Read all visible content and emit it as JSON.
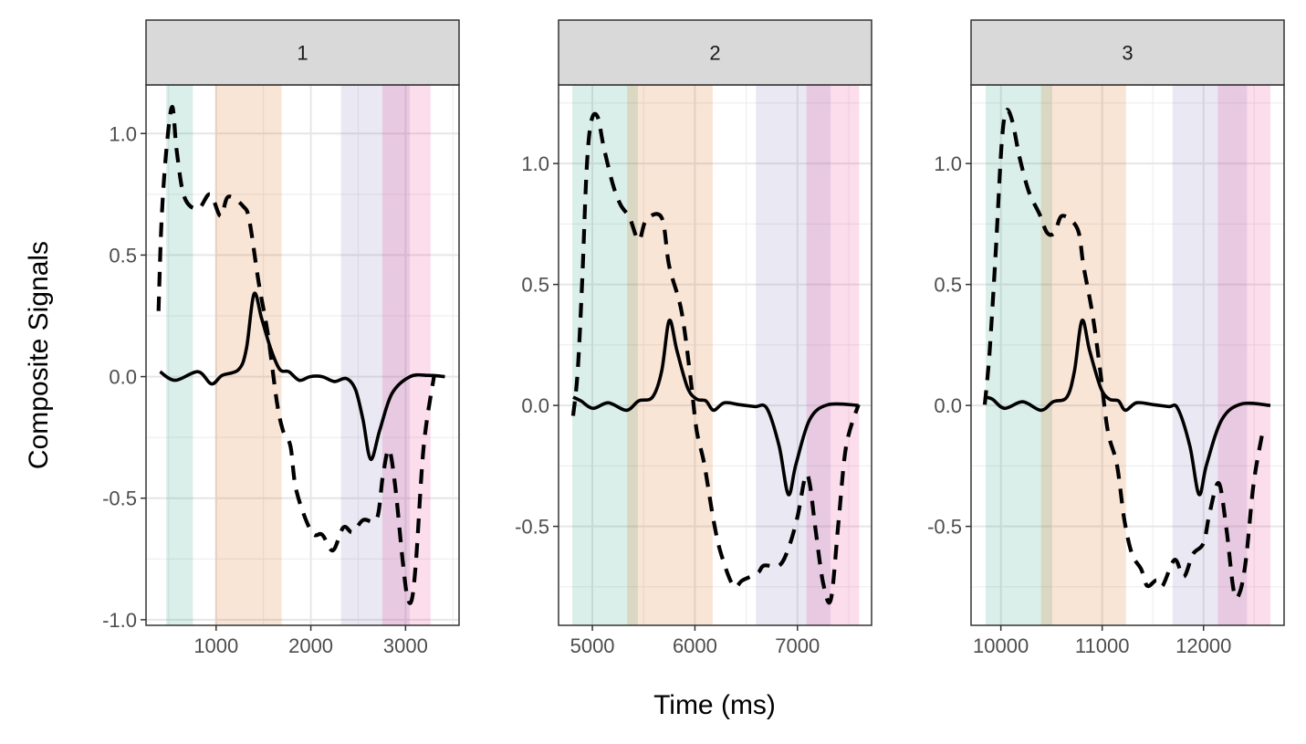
{
  "chart_data": {
    "type": "line",
    "xlabel": "Time (ms)",
    "ylabel": "Composite Signals",
    "grid": true,
    "legend": "none",
    "colors": {
      "green": "#1b9e77",
      "orange": "#d95f02",
      "purple": "#7570b3",
      "pink": "#e7298a",
      "line": "#000000",
      "strip": "#d9d9d9"
    },
    "panels": [
      {
        "strip": "1",
        "xlim": [
          260,
          3565
        ],
        "ylim": [
          -1.023,
          1.2
        ],
        "xticks": [
          1000,
          2000,
          3000
        ],
        "xtick_labels": [
          "1000",
          "2000",
          "3000"
        ],
        "yticks": [
          1.0,
          0.5,
          0.0,
          -0.5,
          -1.0
        ],
        "ytick_labels": [
          "1.0",
          "0.5",
          "0.0",
          "-0.5",
          "-1.0"
        ],
        "bands": [
          {
            "xmin": 473,
            "xmax": 755,
            "color": "green"
          },
          {
            "xmin": 991,
            "xmax": 1691,
            "color": "orange"
          },
          {
            "xmin": 2318,
            "xmax": 3045,
            "color": "purple"
          },
          {
            "xmin": 2755,
            "xmax": 3264,
            "color": "pink"
          }
        ],
        "series": [
          {
            "style": "solid",
            "x": [
              408,
              568,
              808,
              952,
              1064,
              1240,
              1320,
              1400,
              1480,
              1576,
              1672,
              1768,
              1880,
              1992,
              2120,
              2248,
              2376,
              2472,
              2552,
              2632,
              2728,
              2856,
              3048,
              3240,
              3416
            ],
            "y": [
              0.02,
              -0.015,
              0.02,
              -0.03,
              0.005,
              0.03,
              0.115,
              0.34,
              0.24,
              0.115,
              0.03,
              0.02,
              -0.015,
              0,
              0,
              -0.02,
              -0.008,
              -0.054,
              -0.18,
              -0.34,
              -0.22,
              -0.07,
              0,
              0.005,
              0
            ]
          },
          {
            "style": "dashed",
            "x": [
              392,
              424,
              472,
              536,
              584,
              664,
              808,
              936,
              1048,
              1128,
              1288,
              1352,
              1448,
              1544,
              1640,
              1704,
              1784,
              1848,
              2008,
              2120,
              2232,
              2344,
              2440,
              2552,
              2696,
              2760,
              2824,
              2888,
              2968,
              3016,
              3064,
              3112,
              3192,
              3304
            ],
            "y": [
              0.27,
              0.64,
              0.92,
              1.11,
              0.93,
              0.74,
              0.69,
              0.75,
              0.66,
              0.74,
              0.7,
              0.64,
              0.39,
              0.18,
              -0.1,
              -0.22,
              -0.285,
              -0.47,
              -0.64,
              -0.65,
              -0.715,
              -0.62,
              -0.64,
              -0.59,
              -0.585,
              -0.41,
              -0.3,
              -0.44,
              -0.75,
              -0.9,
              -0.92,
              -0.75,
              -0.285,
              0.01
            ]
          }
        ]
      },
      {
        "strip": "2",
        "xlim": [
          4670,
          7723
        ],
        "ylim": [
          -0.909,
          1.325
        ],
        "xticks": [
          5000,
          6000,
          7000
        ],
        "xtick_labels": [
          "5000",
          "6000",
          "7000"
        ],
        "yticks": [
          1.0,
          0.5,
          0.0,
          -0.5
        ],
        "ytick_labels": [
          "1.0",
          "0.5",
          "0.0",
          "-0.5"
        ],
        "bands": [
          {
            "xmin": 4804,
            "xmax": 5443,
            "color": "green"
          },
          {
            "xmin": 5339,
            "xmax": 6173,
            "color": "orange"
          },
          {
            "xmin": 6595,
            "xmax": 7324,
            "color": "purple"
          },
          {
            "xmin": 7089,
            "xmax": 7601,
            "color": "pink"
          }
        ],
        "series": [
          {
            "style": "solid",
            "x": [
              4812,
              4887,
              5006,
              5155,
              5333,
              5452,
              5586,
              5676,
              5750,
              5824,
              5929,
              6018,
              6107,
              6182,
              6286,
              6435,
              6583,
              6702,
              6821,
              6911,
              6985,
              7119,
              7298,
              7595
            ],
            "y": [
              0.034,
              0.019,
              -0.012,
              0.011,
              -0.02,
              0.019,
              0.034,
              0.142,
              0.351,
              0.227,
              0.073,
              0.026,
              0.019,
              -0.02,
              0.011,
              0.003,
              -0.005,
              -0.012,
              -0.167,
              -0.368,
              -0.244,
              -0.059,
              0.003,
              0
            ]
          },
          {
            "style": "dashed",
            "x": [
              4812,
              4857,
              4902,
              4946,
              4991,
              5051,
              5110,
              5199,
              5274,
              5363,
              5452,
              5527,
              5676,
              5750,
              5869,
              5958,
              6018,
              6092,
              6182,
              6256,
              6375,
              6464,
              6613,
              6673,
              6821,
              6911,
              7000,
              7074,
              7119,
              7179,
              7253,
              7327,
              7402,
              7476,
              7595
            ],
            "y": [
              -0.043,
              0.142,
              0.529,
              0.99,
              1.178,
              1.193,
              1.07,
              0.915,
              0.83,
              0.776,
              0.683,
              0.768,
              0.776,
              0.575,
              0.39,
              0.111,
              -0.105,
              -0.244,
              -0.476,
              -0.615,
              -0.746,
              -0.723,
              -0.692,
              -0.662,
              -0.662,
              -0.592,
              -0.461,
              -0.298,
              -0.321,
              -0.522,
              -0.739,
              -0.8,
              -0.476,
              -0.167,
              0.003
            ]
          }
        ]
      },
      {
        "strip": "3",
        "xlim": [
          9706,
          12795
        ],
        "ylim": [
          -0.909,
          1.325
        ],
        "xticks": [
          10000,
          11000,
          12000
        ],
        "xtick_labels": [
          "10000",
          "11000",
          "12000"
        ],
        "yticks": [
          1.0,
          0.5,
          0.0,
          -0.5
        ],
        "ytick_labels": [
          "1.0",
          "0.5",
          "0.0",
          "-0.5"
        ],
        "bands": [
          {
            "xmin": 9850,
            "xmax": 10501,
            "color": "green"
          },
          {
            "xmin": 10396,
            "xmax": 11235,
            "color": "orange"
          },
          {
            "xmin": 11694,
            "xmax": 12429,
            "color": "purple"
          },
          {
            "xmin": 12141,
            "xmax": 12660,
            "color": "pink"
          }
        ],
        "series": [
          {
            "style": "solid",
            "x": [
              9841,
              9916,
              10036,
              10216,
              10396,
              10516,
              10651,
              10726,
              10801,
              10876,
              10985,
              11070,
              11160,
              11229,
              11340,
              11505,
              11655,
              11745,
              11865,
              11955,
              12030,
              12180,
              12375,
              12660
            ],
            "y": [
              0.034,
              0.026,
              -0.012,
              0.015,
              -0.02,
              0.015,
              0.034,
              0.142,
              0.351,
              0.227,
              0.073,
              0.026,
              0.019,
              -0.02,
              0.011,
              0.003,
              -0.005,
              -0.012,
              -0.167,
              -0.368,
              -0.244,
              -0.059,
              0.006,
              0
            ]
          },
          {
            "style": "dashed",
            "x": [
              9841,
              9886,
              9946,
              10006,
              10051,
              10111,
              10186,
              10276,
              10381,
              10456,
              10531,
              10606,
              10756,
              10816,
              10906,
              10981,
              11055,
              11145,
              11220,
              11295,
              11385,
              11445,
              11535,
              11595,
              11715,
              11805,
              11895,
              12000,
              12060,
              12150,
              12225,
              12300,
              12360,
              12420,
              12495,
              12585
            ],
            "y": [
              0.003,
              0.204,
              0.606,
              1.07,
              1.216,
              1.178,
              1.023,
              0.884,
              0.791,
              0.714,
              0.714,
              0.784,
              0.73,
              0.575,
              0.374,
              0.142,
              -0.105,
              -0.244,
              -0.476,
              -0.615,
              -0.677,
              -0.746,
              -0.723,
              -0.746,
              -0.638,
              -0.708,
              -0.615,
              -0.569,
              -0.445,
              -0.321,
              -0.507,
              -0.77,
              -0.77,
              -0.631,
              -0.321,
              -0.105
            ]
          }
        ]
      }
    ]
  }
}
